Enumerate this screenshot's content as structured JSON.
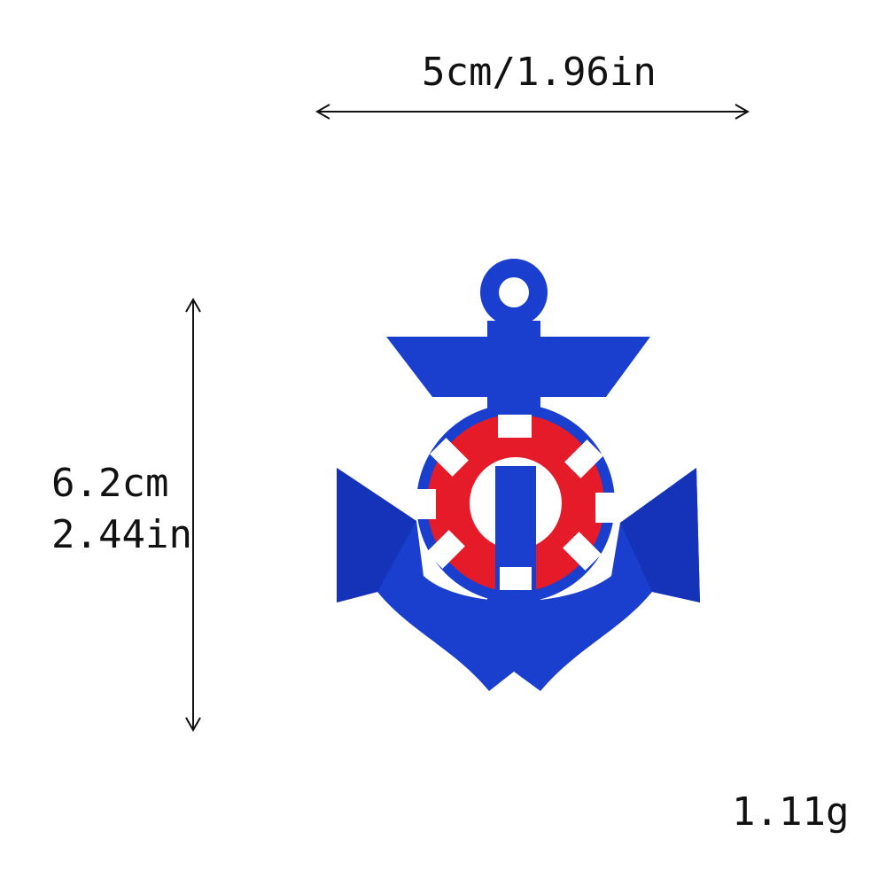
{
  "dimensions": {
    "width": "5cm/1.96in",
    "height_cm": "6.2cm",
    "height_in": "2.44in"
  },
  "weight": "1.11g",
  "product": {
    "type": "anchor-patch",
    "colors": {
      "anchor": "#1a3fcf",
      "ring": "#e51b2a",
      "stripes": "#ffffff"
    }
  }
}
